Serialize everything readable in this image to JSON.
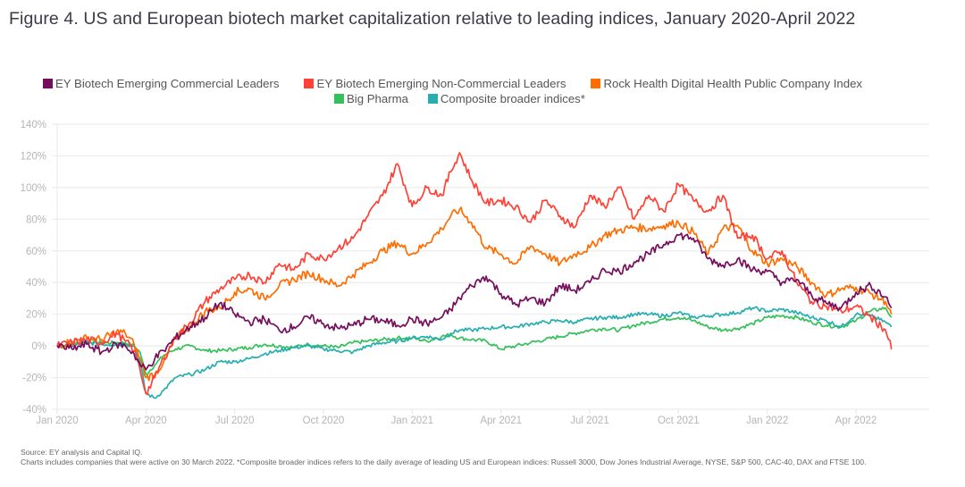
{
  "title": "Figure 4. US and European biotech market capitalization relative to leading indices, January 2020-April 2022",
  "footnotes": {
    "source": "Source: EY analysis and Capital IQ.",
    "note": "Charts includes companies that were active on 30 March 2022. *Composite broader indices refers to the daily average of leading US and European indices: Russell 3000, Dow Jones Industrial Average, NYSE, S&P 500, CAC-40, DAX and FTSE 100."
  },
  "chart_data": {
    "type": "line",
    "title": "Figure 4. US and European biotech market capitalization relative to leading indices, January 2020-April 2022",
    "xlabel": "",
    "ylabel": "",
    "x_unit": "months since Jan 2020",
    "ylim": [
      -40,
      140
    ],
    "xlim": [
      0,
      28.2
    ],
    "grid": true,
    "legend_position": "top-center",
    "y_ticks": [
      140,
      120,
      100,
      80,
      60,
      40,
      20,
      0,
      -20,
      -40
    ],
    "y_tick_labels": [
      "140%",
      "120%",
      "100%",
      "80%",
      "60%",
      "40%",
      "20%",
      "0%",
      "-20%",
      "-40%"
    ],
    "x_ticks": [
      0,
      3,
      6,
      9,
      12,
      15,
      18,
      21,
      24,
      27
    ],
    "x_tick_labels": [
      "Jan 2020",
      "Apr 2020",
      "Jul 2020",
      "Oct 2020",
      "Jan 2021",
      "Apr 2021",
      "Jul 2021",
      "Oct 2021",
      "Jan 2022",
      "Apr 2022"
    ],
    "x": [
      0,
      0.5,
      1,
      1.5,
      2,
      2.3,
      2.6,
      2.8,
      3,
      3.3,
      3.6,
      4,
      4.5,
      5,
      5.5,
      6,
      6.5,
      7,
      7.5,
      8,
      8.5,
      9,
      9.5,
      10,
      10.5,
      11,
      11.5,
      12,
      12.5,
      13,
      13.3,
      13.6,
      14,
      14.5,
      15,
      15.5,
      16,
      16.5,
      17,
      17.5,
      18,
      18.5,
      19,
      19.5,
      20,
      20.5,
      21,
      21.5,
      22,
      22.5,
      23,
      23.5,
      24,
      24.5,
      25,
      25.5,
      26,
      26.5,
      27,
      27.5,
      28,
      28.2
    ],
    "series": [
      {
        "name": "EY Biotech Emerging Commercial Leaders",
        "color": "#750e5c",
        "values": [
          0,
          -2,
          1,
          -4,
          1,
          0,
          -5,
          -12,
          -15,
          -8,
          -3,
          5,
          12,
          18,
          27,
          20,
          15,
          17,
          10,
          12,
          18,
          14,
          11,
          13,
          17,
          16,
          13,
          17,
          14,
          18,
          23,
          30,
          38,
          44,
          33,
          26,
          30,
          27,
          38,
          35,
          40,
          48,
          47,
          53,
          58,
          64,
          70,
          68,
          55,
          51,
          55,
          48,
          47,
          40,
          42,
          32,
          27,
          24,
          34,
          38,
          31,
          24
        ]
      },
      {
        "name": "EY Biotech Emerging Non-Commercial Leaders",
        "color": "#ff4136",
        "values": [
          0,
          2,
          4,
          2,
          8,
          3,
          -3,
          -15,
          -30,
          -20,
          -8,
          5,
          15,
          28,
          36,
          42,
          45,
          40,
          52,
          48,
          58,
          55,
          62,
          68,
          82,
          95,
          115,
          88,
          100,
          95,
          110,
          122,
          105,
          90,
          92,
          88,
          78,
          92,
          82,
          75,
          95,
          88,
          100,
          80,
          95,
          85,
          102,
          92,
          85,
          95,
          68,
          70,
          55,
          60,
          40,
          28,
          25,
          22,
          25,
          18,
          10,
          -2
        ]
      },
      {
        "name": "Rock Health Digital Health Public Company Index",
        "color": "#ff6d00",
        "values": [
          0,
          3,
          5,
          4,
          9,
          8,
          1,
          -8,
          -20,
          -18,
          -10,
          5,
          12,
          22,
          24,
          34,
          36,
          30,
          38,
          42,
          46,
          42,
          38,
          45,
          52,
          60,
          65,
          58,
          65,
          74,
          82,
          86,
          78,
          62,
          58,
          52,
          63,
          58,
          52,
          58,
          62,
          70,
          73,
          75,
          74,
          76,
          78,
          72,
          58,
          74,
          76,
          60,
          52,
          55,
          50,
          40,
          32,
          36,
          37,
          33,
          28,
          20
        ]
      },
      {
        "name": "Big Pharma",
        "color": "#34c05a",
        "values": [
          0,
          1,
          3,
          2,
          2,
          2,
          0,
          -4,
          -18,
          -12,
          -6,
          -2,
          0,
          -3,
          -3,
          -2,
          -1,
          1,
          0,
          -1,
          1,
          0,
          -1,
          2,
          3,
          4,
          5,
          5,
          3,
          6,
          7,
          5,
          4,
          3,
          -2,
          0,
          2,
          4,
          6,
          8,
          10,
          11,
          10,
          13,
          15,
          17,
          18,
          16,
          12,
          10,
          11,
          14,
          18,
          19,
          18,
          15,
          13,
          12,
          16,
          22,
          24,
          18
        ]
      },
      {
        "name": "Composite broader indices*",
        "color": "#26aeb0",
        "values": [
          0,
          0,
          2,
          1,
          1,
          1,
          0,
          -10,
          -30,
          -33,
          -28,
          -20,
          -18,
          -15,
          -10,
          -10,
          -8,
          -5,
          -3,
          -1,
          0,
          -2,
          -3,
          -4,
          0,
          2,
          3,
          5,
          6,
          4,
          8,
          10,
          10,
          11,
          12,
          12,
          14,
          15,
          16,
          15,
          17,
          18,
          18,
          20,
          20,
          19,
          21,
          18,
          19,
          20,
          21,
          24,
          22,
          23,
          21,
          18,
          16,
          12,
          20,
          19,
          15,
          12
        ]
      }
    ]
  }
}
